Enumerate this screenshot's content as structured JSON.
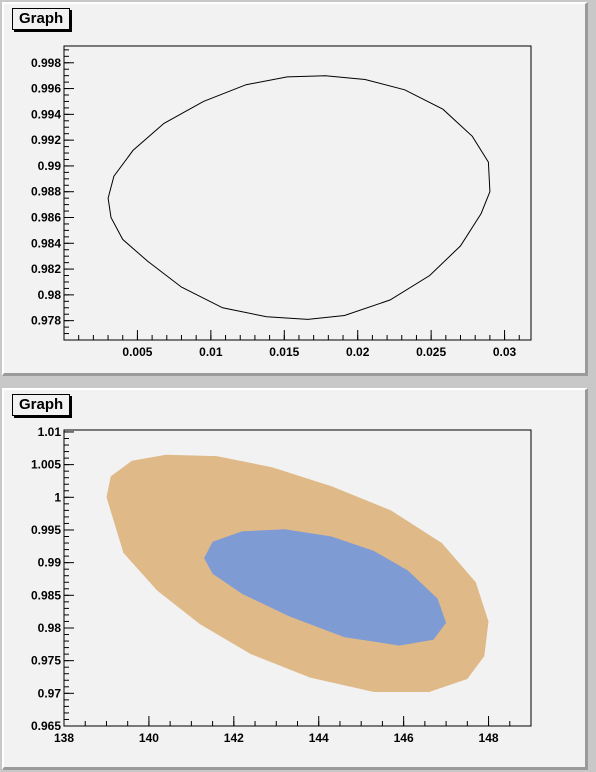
{
  "colors": {
    "pad_bg": "#f2f2f2",
    "outer_contour": "#dfba88",
    "inner_contour": "#7f9bd4",
    "line": "#000000"
  },
  "chart_data": [
    {
      "type": "line",
      "title": "Graph",
      "xlabel": "",
      "ylabel": "",
      "xlim": [
        0.0,
        0.0318
      ],
      "ylim": [
        0.9765,
        0.9993
      ],
      "x_ticks": [
        "0.005",
        "0.01",
        "0.015",
        "0.02",
        "0.025",
        "0.03"
      ],
      "y_ticks": [
        "0.978",
        "0.98",
        "0.982",
        "0.984",
        "0.986",
        "0.988",
        "0.99",
        "0.992",
        "0.994",
        "0.996",
        "0.998"
      ],
      "series": [
        {
          "shape": "closed-contour",
          "x": [
            0.003,
            0.0034,
            0.0047,
            0.0068,
            0.0095,
            0.0124,
            0.0152,
            0.0178,
            0.0205,
            0.0232,
            0.0258,
            0.0278,
            0.0289,
            0.029,
            0.0284,
            0.027,
            0.0249,
            0.0222,
            0.0191,
            0.0166,
            0.0138,
            0.0108,
            0.008,
            0.0057,
            0.004,
            0.0032,
            0.003
          ],
          "y": [
            0.9875,
            0.9892,
            0.9912,
            0.9933,
            0.995,
            0.9963,
            0.9969,
            0.997,
            0.9967,
            0.9959,
            0.9944,
            0.9923,
            0.9903,
            0.988,
            0.9863,
            0.9838,
            0.9815,
            0.9796,
            0.9784,
            0.9781,
            0.9783,
            0.979,
            0.9806,
            0.9826,
            0.9843,
            0.986,
            0.9875
          ]
        }
      ]
    },
    {
      "type": "area",
      "title": "Graph",
      "xlabel": "",
      "ylabel": "",
      "xlim": [
        138,
        149
      ],
      "ylim": [
        0.965,
        1.0103
      ],
      "x_ticks": [
        "138",
        "140",
        "142",
        "144",
        "146",
        "148"
      ],
      "y_ticks": [
        "0.965",
        "0.97",
        "0.975",
        "0.98",
        "0.985",
        "0.99",
        "0.995",
        "1",
        "1.005",
        "1.01"
      ],
      "series": [
        {
          "shape": "filled-contour",
          "level": "outer",
          "x": [
            139.0,
            139.1,
            139.6,
            140.4,
            141.6,
            142.9,
            144.3,
            145.7,
            146.9,
            147.7,
            148.0,
            147.9,
            147.5,
            146.6,
            145.3,
            143.8,
            142.4,
            141.2,
            140.2,
            139.4,
            139.0
          ],
          "y": [
            1.0,
            1.0032,
            1.0056,
            1.0065,
            1.0063,
            1.0046,
            1.0017,
            0.998,
            0.993,
            0.987,
            0.981,
            0.9757,
            0.9722,
            0.9702,
            0.9702,
            0.9724,
            0.976,
            0.9806,
            0.9857,
            0.9915,
            1.0
          ]
        },
        {
          "shape": "filled-contour",
          "level": "inner",
          "x": [
            141.3,
            141.5,
            142.2,
            143.2,
            144.3,
            145.3,
            146.1,
            146.8,
            147.0,
            146.7,
            145.9,
            144.6,
            143.3,
            142.2,
            141.5,
            141.3
          ],
          "y": [
            0.9907,
            0.9932,
            0.9948,
            0.9951,
            0.994,
            0.9918,
            0.9888,
            0.9845,
            0.9808,
            0.9782,
            0.9773,
            0.9786,
            0.9818,
            0.9852,
            0.9883,
            0.9907
          ]
        }
      ]
    }
  ]
}
